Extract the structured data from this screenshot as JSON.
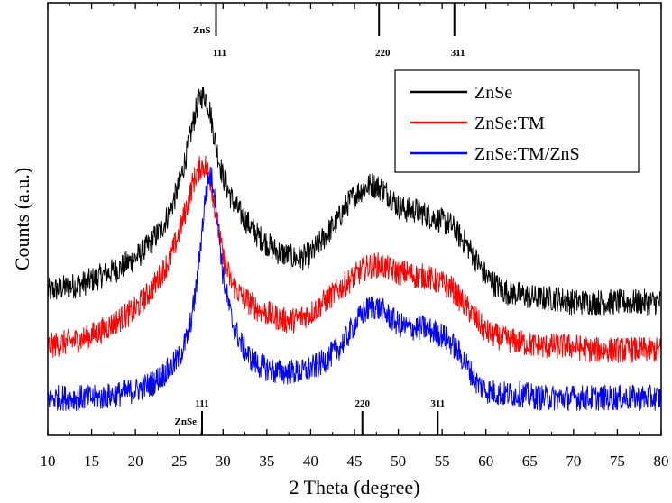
{
  "chart_data": {
    "type": "line",
    "xlabel": "2 Theta (degree)",
    "ylabel": "Counts (a.u.)",
    "xlim": [
      10,
      80
    ],
    "xticks": [
      10,
      15,
      20,
      25,
      30,
      35,
      40,
      45,
      50,
      55,
      60,
      65,
      70,
      75,
      80
    ],
    "ylim": [
      0,
      1
    ],
    "grid": false,
    "legend_position": "top-right",
    "series": [
      {
        "name": "ZnSe",
        "color": "#000000",
        "x": [
          10,
          12,
          14,
          16,
          18,
          20,
          21,
          22,
          23,
          24,
          25,
          26,
          26.5,
          27,
          27.5,
          28,
          28.5,
          29,
          29.5,
          30,
          31,
          32,
          33,
          34,
          35,
          36,
          37,
          38,
          39,
          40,
          41,
          42,
          43,
          44,
          45,
          46,
          47,
          48,
          49,
          50,
          51,
          52,
          53,
          54,
          55,
          56,
          57,
          58,
          59,
          60,
          62,
          64,
          66,
          68,
          70,
          72,
          74,
          76,
          78,
          80
        ],
        "values": [
          0.38,
          0.39,
          0.4,
          0.42,
          0.44,
          0.47,
          0.49,
          0.52,
          0.55,
          0.6,
          0.67,
          0.77,
          0.83,
          0.88,
          0.91,
          0.91,
          0.87,
          0.8,
          0.74,
          0.69,
          0.63,
          0.59,
          0.56,
          0.53,
          0.51,
          0.49,
          0.48,
          0.47,
          0.47,
          0.48,
          0.51,
          0.54,
          0.57,
          0.61,
          0.64,
          0.66,
          0.67,
          0.66,
          0.64,
          0.61,
          0.6,
          0.6,
          0.59,
          0.58,
          0.57,
          0.56,
          0.53,
          0.5,
          0.46,
          0.42,
          0.38,
          0.37,
          0.36,
          0.36,
          0.35,
          0.35,
          0.35,
          0.35,
          0.35,
          0.35
        ]
      },
      {
        "name": "ZnSe:TM",
        "color": "#ff0000",
        "x": [
          10,
          12,
          14,
          16,
          18,
          20,
          21,
          22,
          23,
          24,
          25,
          26,
          26.5,
          27,
          27.5,
          28,
          28.5,
          29,
          29.5,
          30,
          31,
          32,
          33,
          34,
          35,
          36,
          37,
          38,
          39,
          40,
          41,
          42,
          43,
          44,
          45,
          46,
          47,
          48,
          49,
          50,
          51,
          52,
          53,
          54,
          55,
          56,
          57,
          58,
          59,
          60,
          62,
          64,
          66,
          68,
          70,
          72,
          74,
          76,
          78,
          80
        ],
        "values": [
          0.23,
          0.24,
          0.25,
          0.27,
          0.3,
          0.33,
          0.36,
          0.39,
          0.43,
          0.47,
          0.54,
          0.62,
          0.67,
          0.7,
          0.72,
          0.72,
          0.69,
          0.62,
          0.54,
          0.47,
          0.4,
          0.37,
          0.35,
          0.33,
          0.32,
          0.31,
          0.3,
          0.3,
          0.31,
          0.32,
          0.34,
          0.36,
          0.38,
          0.4,
          0.42,
          0.44,
          0.45,
          0.45,
          0.44,
          0.43,
          0.43,
          0.42,
          0.42,
          0.41,
          0.4,
          0.39,
          0.36,
          0.33,
          0.3,
          0.27,
          0.25,
          0.24,
          0.23,
          0.23,
          0.23,
          0.22,
          0.22,
          0.22,
          0.22,
          0.22
        ]
      },
      {
        "name": "ZnSe:TM/ZnS",
        "color": "#0000ff",
        "x": [
          10,
          12,
          14,
          16,
          18,
          20,
          21,
          22,
          23,
          24,
          25,
          26,
          26.5,
          27,
          27.5,
          28,
          28.5,
          29,
          29.5,
          30,
          31,
          32,
          33,
          34,
          35,
          36,
          37,
          38,
          39,
          40,
          41,
          42,
          43,
          44,
          45,
          46,
          47,
          48,
          49,
          50,
          51,
          52,
          53,
          54,
          55,
          56,
          57,
          58,
          59,
          60,
          62,
          64,
          66,
          68,
          70,
          72,
          74,
          76,
          78,
          80
        ],
        "values": [
          0.09,
          0.09,
          0.09,
          0.09,
          0.1,
          0.11,
          0.12,
          0.13,
          0.15,
          0.17,
          0.2,
          0.26,
          0.32,
          0.4,
          0.52,
          0.64,
          0.7,
          0.66,
          0.55,
          0.42,
          0.3,
          0.24,
          0.2,
          0.18,
          0.17,
          0.16,
          0.16,
          0.16,
          0.16,
          0.17,
          0.18,
          0.2,
          0.22,
          0.25,
          0.29,
          0.32,
          0.34,
          0.33,
          0.31,
          0.29,
          0.28,
          0.28,
          0.28,
          0.27,
          0.26,
          0.24,
          0.21,
          0.17,
          0.13,
          0.11,
          0.1,
          0.1,
          0.09,
          0.09,
          0.09,
          0.09,
          0.09,
          0.09,
          0.09,
          0.09
        ]
      }
    ],
    "reference_top": {
      "label": "ZnS",
      "peaks": [
        {
          "x": 29.2,
          "label": "111"
        },
        {
          "x": 47.8,
          "label": "220"
        },
        {
          "x": 56.4,
          "label": "311"
        }
      ]
    },
    "reference_bottom": {
      "label": "ZnSe",
      "peaks": [
        {
          "x": 27.6,
          "label": "111"
        },
        {
          "x": 45.9,
          "label": "220"
        },
        {
          "x": 54.5,
          "label": "311"
        }
      ]
    }
  }
}
